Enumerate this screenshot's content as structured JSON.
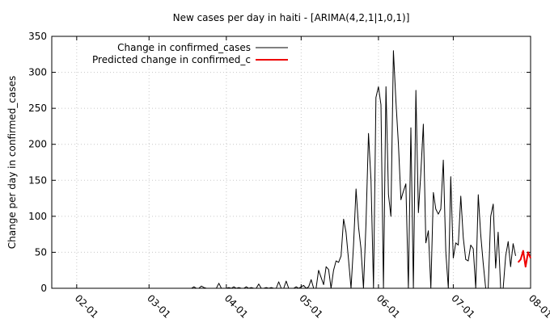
{
  "chart_data": {
    "type": "line",
    "title": "New cases per day in haiti -  [ARIMA(4,2,1|1,0,1)]",
    "xlabel": "",
    "ylabel": "Change per day in confirmed_cases",
    "ylim": [
      0,
      350
    ],
    "yticks": [
      0,
      50,
      100,
      150,
      200,
      250,
      300,
      350
    ],
    "xlim": [
      "2020-01-22",
      "2020-08-01"
    ],
    "xticks": [
      {
        "date": "2020-02-01",
        "label": "02-01"
      },
      {
        "date": "2020-03-01",
        "label": "03-01"
      },
      {
        "date": "2020-04-01",
        "label": "04-01"
      },
      {
        "date": "2020-05-01",
        "label": "05-01"
      },
      {
        "date": "2020-06-01",
        "label": "06-01"
      },
      {
        "date": "2020-07-01",
        "label": "07-01"
      },
      {
        "date": "2020-08-01",
        "label": "08-01"
      }
    ],
    "grid": true,
    "legend_position": "top-left",
    "series": [
      {
        "name": "Change in confirmed_cases",
        "color": "#000000",
        "x": [
          "2020-01-22",
          "2020-03-18",
          "2020-03-19",
          "2020-03-20",
          "2020-03-21",
          "2020-03-22",
          "2020-03-23",
          "2020-03-24",
          "2020-03-25",
          "2020-03-26",
          "2020-03-27",
          "2020-03-28",
          "2020-03-29",
          "2020-03-30",
          "2020-03-31",
          "2020-04-01",
          "2020-04-02",
          "2020-04-03",
          "2020-04-04",
          "2020-04-05",
          "2020-04-06",
          "2020-04-07",
          "2020-04-08",
          "2020-04-09",
          "2020-04-10",
          "2020-04-11",
          "2020-04-12",
          "2020-04-13",
          "2020-04-14",
          "2020-04-15",
          "2020-04-16",
          "2020-04-17",
          "2020-04-18",
          "2020-04-19",
          "2020-04-20",
          "2020-04-21",
          "2020-04-22",
          "2020-04-23",
          "2020-04-24",
          "2020-04-25",
          "2020-04-26",
          "2020-04-27",
          "2020-04-28",
          "2020-04-29",
          "2020-04-30",
          "2020-05-01",
          "2020-05-02",
          "2020-05-03",
          "2020-05-04",
          "2020-05-05",
          "2020-05-06",
          "2020-05-07",
          "2020-05-08",
          "2020-05-09",
          "2020-05-10",
          "2020-05-11",
          "2020-05-12",
          "2020-05-13",
          "2020-05-14",
          "2020-05-15",
          "2020-05-16",
          "2020-05-17",
          "2020-05-18",
          "2020-05-19",
          "2020-05-20",
          "2020-05-21",
          "2020-05-22",
          "2020-05-23",
          "2020-05-24",
          "2020-05-25",
          "2020-05-26",
          "2020-05-27",
          "2020-05-28",
          "2020-05-29",
          "2020-05-30",
          "2020-05-31",
          "2020-06-01",
          "2020-06-02",
          "2020-06-03",
          "2020-06-04",
          "2020-06-05",
          "2020-06-06",
          "2020-06-07",
          "2020-06-08",
          "2020-06-09",
          "2020-06-10",
          "2020-06-11",
          "2020-06-12",
          "2020-06-13",
          "2020-06-14",
          "2020-06-15",
          "2020-06-16",
          "2020-06-17",
          "2020-06-18",
          "2020-06-19",
          "2020-06-20",
          "2020-06-21",
          "2020-06-22",
          "2020-06-23",
          "2020-06-24",
          "2020-06-25",
          "2020-06-26",
          "2020-06-27",
          "2020-06-28",
          "2020-06-29",
          "2020-06-30",
          "2020-07-01",
          "2020-07-02",
          "2020-07-03",
          "2020-07-04",
          "2020-07-05",
          "2020-07-06",
          "2020-07-07",
          "2020-07-08",
          "2020-07-09",
          "2020-07-10",
          "2020-07-11",
          "2020-07-12",
          "2020-07-13",
          "2020-07-14",
          "2020-07-15",
          "2020-07-16",
          "2020-07-17",
          "2020-07-18",
          "2020-07-19",
          "2020-07-20",
          "2020-07-21",
          "2020-07-22",
          "2020-07-23",
          "2020-07-24",
          "2020-07-25",
          "2020-07-26"
        ],
        "y": [
          0,
          0,
          2,
          0,
          0,
          3,
          1,
          0,
          0,
          0,
          0,
          0,
          7,
          0,
          0,
          0,
          1,
          0,
          2,
          0,
          1,
          0,
          0,
          2,
          0,
          1,
          0,
          0,
          6,
          0,
          0,
          1,
          0,
          1,
          0,
          0,
          9,
          0,
          0,
          10,
          0,
          0,
          0,
          2,
          0,
          2,
          4,
          0,
          2,
          12,
          0,
          0,
          25,
          15,
          5,
          30,
          26,
          0,
          25,
          38,
          36,
          45,
          96,
          78,
          40,
          0,
          60,
          138,
          85,
          55,
          0,
          90,
          215,
          150,
          0,
          265,
          280,
          255,
          0,
          280,
          130,
          100,
          330,
          260,
          200,
          123,
          135,
          145,
          0,
          223,
          0,
          275,
          105,
          160,
          228,
          63,
          80,
          0,
          133,
          110,
          103,
          110,
          178,
          50,
          0,
          155,
          42,
          63,
          60,
          128,
          70,
          40,
          38,
          60,
          55,
          0,
          130,
          75,
          35,
          0,
          0,
          100,
          117,
          28,
          78,
          0,
          0,
          45,
          65,
          30,
          62,
          45
        ]
      },
      {
        "name": "Predicted change in confirmed_c",
        "color": "#ee0000",
        "x": [
          "2020-07-27",
          "2020-07-28",
          "2020-07-29",
          "2020-07-30",
          "2020-07-31",
          "2020-08-01"
        ],
        "y": [
          36,
          40,
          52,
          30,
          50,
          42
        ]
      }
    ]
  }
}
